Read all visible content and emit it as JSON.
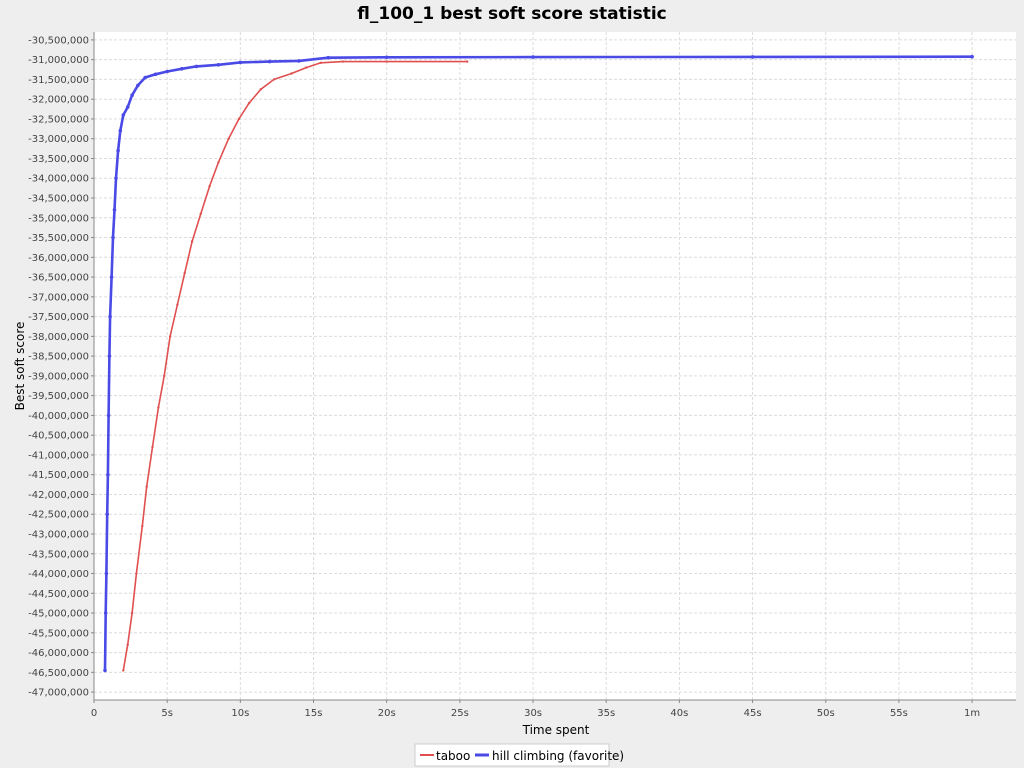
{
  "chart_data": {
    "type": "line",
    "title": "fl_100_1 best soft score statistic",
    "xlabel": "Time spent",
    "ylabel": "Best soft score",
    "xlim": [
      0,
      63
    ],
    "ylim": [
      -47200000,
      -30300000
    ],
    "x_ticks": [
      {
        "value": 0,
        "label": "0"
      },
      {
        "value": 5,
        "label": "5s"
      },
      {
        "value": 10,
        "label": "10s"
      },
      {
        "value": 15,
        "label": "15s"
      },
      {
        "value": 20,
        "label": "20s"
      },
      {
        "value": 25,
        "label": "25s"
      },
      {
        "value": 30,
        "label": "30s"
      },
      {
        "value": 35,
        "label": "35s"
      },
      {
        "value": 40,
        "label": "40s"
      },
      {
        "value": 45,
        "label": "45s"
      },
      {
        "value": 50,
        "label": "50s"
      },
      {
        "value": 55,
        "label": "55s"
      },
      {
        "value": 60,
        "label": "1m"
      }
    ],
    "y_ticks": [
      {
        "value": -30500000,
        "label": "-30,500,000"
      },
      {
        "value": -31000000,
        "label": "-31,000,000"
      },
      {
        "value": -31500000,
        "label": "-31,500,000"
      },
      {
        "value": -32000000,
        "label": "-32,000,000"
      },
      {
        "value": -32500000,
        "label": "-32,500,000"
      },
      {
        "value": -33000000,
        "label": "-33,000,000"
      },
      {
        "value": -33500000,
        "label": "-33,500,000"
      },
      {
        "value": -34000000,
        "label": "-34,000,000"
      },
      {
        "value": -34500000,
        "label": "-34,500,000"
      },
      {
        "value": -35000000,
        "label": "-35,000,000"
      },
      {
        "value": -35500000,
        "label": "-35,500,000"
      },
      {
        "value": -36000000,
        "label": "-36,000,000"
      },
      {
        "value": -36500000,
        "label": "-36,500,000"
      },
      {
        "value": -37000000,
        "label": "-37,000,000"
      },
      {
        "value": -37500000,
        "label": "-37,500,000"
      },
      {
        "value": -38000000,
        "label": "-38,000,000"
      },
      {
        "value": -38500000,
        "label": "-38,500,000"
      },
      {
        "value": -39000000,
        "label": "-39,000,000"
      },
      {
        "value": -39500000,
        "label": "-39,500,000"
      },
      {
        "value": -40000000,
        "label": "-40,000,000"
      },
      {
        "value": -40500000,
        "label": "-40,500,000"
      },
      {
        "value": -41000000,
        "label": "-41,000,000"
      },
      {
        "value": -41500000,
        "label": "-41,500,000"
      },
      {
        "value": -42000000,
        "label": "-42,000,000"
      },
      {
        "value": -42500000,
        "label": "-42,500,000"
      },
      {
        "value": -43000000,
        "label": "-43,000,000"
      },
      {
        "value": -43500000,
        "label": "-43,500,000"
      },
      {
        "value": -44000000,
        "label": "-44,000,000"
      },
      {
        "value": -44500000,
        "label": "-44,500,000"
      },
      {
        "value": -45000000,
        "label": "-45,000,000"
      },
      {
        "value": -45500000,
        "label": "-45,500,000"
      },
      {
        "value": -46000000,
        "label": "-46,000,000"
      },
      {
        "value": -46500000,
        "label": "-46,500,000"
      },
      {
        "value": -47000000,
        "label": "-47,000,000"
      }
    ],
    "grid": true,
    "legend_position": "bottom",
    "series": [
      {
        "name": "taboo",
        "color": "#e05050",
        "points": [
          [
            2.0,
            -46450000
          ],
          [
            2.3,
            -45800000
          ],
          [
            2.6,
            -45000000
          ],
          [
            2.9,
            -44000000
          ],
          [
            3.3,
            -42800000
          ],
          [
            3.6,
            -41800000
          ],
          [
            4.0,
            -40800000
          ],
          [
            4.4,
            -39800000
          ],
          [
            4.8,
            -39000000
          ],
          [
            5.2,
            -38000000
          ],
          [
            5.7,
            -37200000
          ],
          [
            6.2,
            -36400000
          ],
          [
            6.7,
            -35600000
          ],
          [
            7.3,
            -34900000
          ],
          [
            7.9,
            -34200000
          ],
          [
            8.5,
            -33600000
          ],
          [
            9.2,
            -33000000
          ],
          [
            9.9,
            -32500000
          ],
          [
            10.6,
            -32100000
          ],
          [
            11.4,
            -31750000
          ],
          [
            12.3,
            -31500000
          ],
          [
            13.5,
            -31350000
          ],
          [
            14.5,
            -31200000
          ],
          [
            15.5,
            -31080000
          ],
          [
            17.0,
            -31050000
          ],
          [
            20.0,
            -31050000
          ],
          [
            25.5,
            -31050000
          ]
        ]
      },
      {
        "name": "hill climbing (favorite)",
        "color": "#4a4ae6",
        "points": [
          [
            0.75,
            -46450000
          ],
          [
            0.8,
            -45000000
          ],
          [
            0.85,
            -44000000
          ],
          [
            0.9,
            -42500000
          ],
          [
            0.95,
            -41500000
          ],
          [
            1.0,
            -40000000
          ],
          [
            1.05,
            -38500000
          ],
          [
            1.1,
            -37500000
          ],
          [
            1.2,
            -36500000
          ],
          [
            1.3,
            -35500000
          ],
          [
            1.4,
            -34800000
          ],
          [
            1.5,
            -34000000
          ],
          [
            1.65,
            -33300000
          ],
          [
            1.8,
            -32800000
          ],
          [
            2.0,
            -32400000
          ],
          [
            2.3,
            -32200000
          ],
          [
            2.6,
            -31900000
          ],
          [
            3.0,
            -31650000
          ],
          [
            3.5,
            -31450000
          ],
          [
            4.2,
            -31370000
          ],
          [
            5.0,
            -31300000
          ],
          [
            6.0,
            -31230000
          ],
          [
            7.0,
            -31170000
          ],
          [
            8.5,
            -31130000
          ],
          [
            10.0,
            -31070000
          ],
          [
            12.0,
            -31050000
          ],
          [
            14.0,
            -31030000
          ],
          [
            16.0,
            -30950000
          ],
          [
            20.0,
            -30940000
          ],
          [
            30.0,
            -30935000
          ],
          [
            45.0,
            -30930000
          ],
          [
            60.0,
            -30925000
          ]
        ]
      }
    ]
  }
}
